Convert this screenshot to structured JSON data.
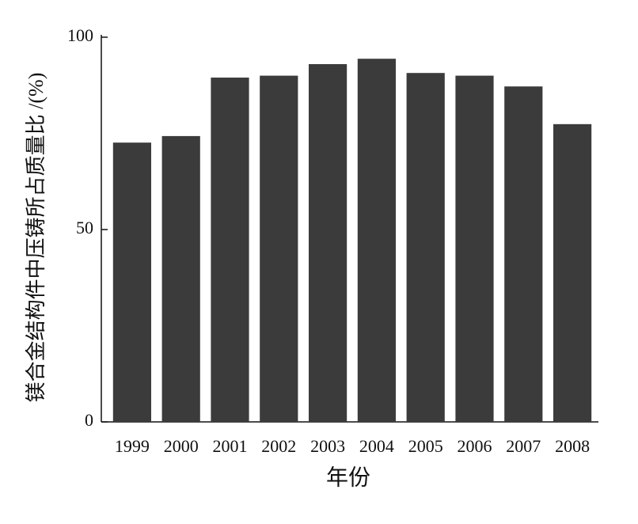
{
  "chart_data": {
    "type": "bar",
    "x_label": "年份",
    "y_label": "镁合金结构件中压铸所占质量比 /(%)",
    "categories": [
      "1999",
      "2000",
      "2001",
      "2002",
      "2003",
      "2004",
      "2005",
      "2006",
      "2007",
      "2008"
    ],
    "values": [
      72.6,
      74.3,
      89.5,
      90,
      93,
      94.4,
      90.7,
      90,
      87.2,
      77.4
    ],
    "color": "#3b3b3b",
    "ylim": [
      0,
      100
    ],
    "yticks": [
      0,
      50,
      100
    ],
    "grid": false
  }
}
